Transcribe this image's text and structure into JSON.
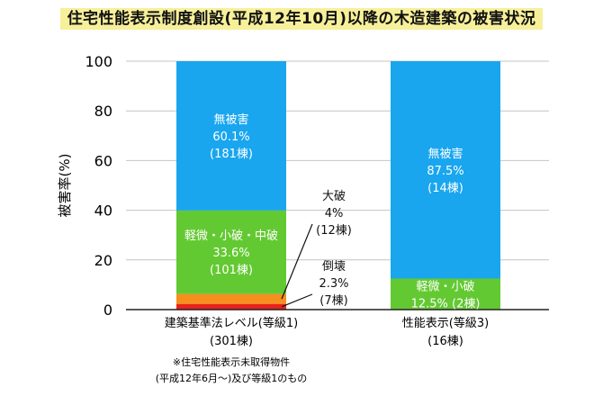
{
  "page_title": "住宅性能表示制度創設(平成12年10月)以降の木造建築の被害状況",
  "chart_data": {
    "type": "bar",
    "stacked": true,
    "title": "住宅性能表示制度創設(平成12年10月)以降の木造建築の被害状況",
    "ylabel": "被害率(%)",
    "ylim": [
      0,
      100
    ],
    "yticks": [
      0,
      20,
      40,
      60,
      80,
      100
    ],
    "grid": true,
    "categories": [
      {
        "label": "建築基準法レベル(等級1)",
        "count": "(301棟)"
      },
      {
        "label": "性能表示(等級3)",
        "count": "(16棟)"
      }
    ],
    "series": [
      {
        "name": "倒壊",
        "color": "#e8231b",
        "values": [
          2.3,
          null
        ]
      },
      {
        "name": "大破",
        "color": "#f5901e",
        "values": [
          4,
          null
        ]
      },
      {
        "name": "軽微・小破・中破",
        "color": "#63c932",
        "values": [
          33.6,
          null
        ]
      },
      {
        "name": "軽微・小破",
        "color": "#63c932",
        "values": [
          null,
          12.5
        ]
      },
      {
        "name": "無被害",
        "color": "#19a6ef",
        "values": [
          60.1,
          87.5
        ]
      }
    ],
    "inner_labels": [
      {
        "bar": 0,
        "series": "無被害",
        "lines": [
          "無被害",
          "60.1%",
          "(181棟)"
        ]
      },
      {
        "bar": 0,
        "series": "軽微・小破・中破",
        "lines": [
          "軽微・小破・中破",
          "33.6%",
          "(101棟)"
        ]
      },
      {
        "bar": 1,
        "series": "無被害",
        "lines": [
          "無被害",
          "87.5%",
          "(14棟)"
        ]
      },
      {
        "bar": 1,
        "series": "軽微・小破",
        "lines": [
          "軽微・小破",
          "12.5% (2棟)"
        ]
      }
    ],
    "callouts": [
      {
        "bar": 0,
        "series": "大破",
        "lines": [
          "大破",
          "4%",
          "(12棟)"
        ]
      },
      {
        "bar": 0,
        "series": "倒壊",
        "lines": [
          "倒壊",
          "2.3%",
          "(7棟)"
        ]
      }
    ],
    "footnote": [
      "※住宅性能表示未取得物件",
      "(平成12年6月～)及び等級1のもの"
    ]
  }
}
